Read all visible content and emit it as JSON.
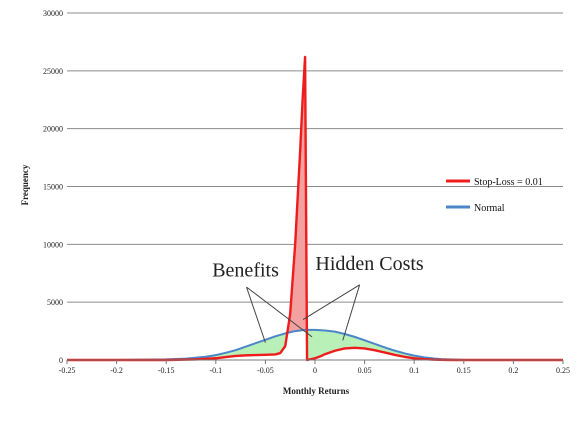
{
  "chart_data": {
    "type": "line",
    "title": "",
    "xlabel": "Monthly Returns",
    "ylabel": "Frequency",
    "xlim": [
      -0.25,
      0.25
    ],
    "ylim": [
      0,
      30000
    ],
    "x_ticks": [
      "-0.25",
      "-0.2",
      "-0.15",
      "-0.1",
      "-0.05",
      "0",
      "0.05",
      "0.1",
      "0.15",
      "0.2",
      "0.25"
    ],
    "y_ticks": [
      "0",
      "5000",
      "10000",
      "15000",
      "20000",
      "25000",
      "30000"
    ],
    "grid": "horizontal",
    "legend_position": "right",
    "series": [
      {
        "name": "Stop-Loss = 0.01",
        "color": "#ee1c1c",
        "fill": "#f2a0a0",
        "points": [
          [
            -0.25,
            0
          ],
          [
            -0.15,
            0
          ],
          [
            -0.12,
            50
          ],
          [
            -0.1,
            150
          ],
          [
            -0.09,
            250
          ],
          [
            -0.08,
            350
          ],
          [
            -0.07,
            400
          ],
          [
            -0.06,
            430
          ],
          [
            -0.05,
            450
          ],
          [
            -0.04,
            480
          ],
          [
            -0.035,
            600
          ],
          [
            -0.03,
            1200
          ],
          [
            -0.025,
            4000
          ],
          [
            -0.02,
            10000
          ],
          [
            -0.015,
            18000
          ],
          [
            -0.0125,
            22500
          ],
          [
            -0.01,
            26200
          ],
          [
            -0.008,
            0
          ],
          [
            0,
            150
          ],
          [
            0.005,
            300
          ],
          [
            0.01,
            500
          ],
          [
            0.02,
            800
          ],
          [
            0.03,
            1000
          ],
          [
            0.04,
            1050
          ],
          [
            0.05,
            1000
          ],
          [
            0.06,
            850
          ],
          [
            0.07,
            650
          ],
          [
            0.08,
            450
          ],
          [
            0.09,
            280
          ],
          [
            0.1,
            150
          ],
          [
            0.11,
            70
          ],
          [
            0.12,
            30
          ],
          [
            0.13,
            10
          ],
          [
            0.14,
            0
          ],
          [
            0.25,
            0
          ]
        ]
      },
      {
        "name": "Normal",
        "color": "#4a86c8",
        "fill": "#b8f0b8",
        "points": [
          [
            -0.25,
            0
          ],
          [
            -0.2,
            0
          ],
          [
            -0.15,
            50
          ],
          [
            -0.13,
            120
          ],
          [
            -0.11,
            280
          ],
          [
            -0.1,
            420
          ],
          [
            -0.09,
            620
          ],
          [
            -0.08,
            850
          ],
          [
            -0.07,
            1150
          ],
          [
            -0.06,
            1450
          ],
          [
            -0.05,
            1750
          ],
          [
            -0.04,
            2050
          ],
          [
            -0.03,
            2300
          ],
          [
            -0.02,
            2500
          ],
          [
            -0.01,
            2600
          ],
          [
            0,
            2600
          ],
          [
            0.01,
            2550
          ],
          [
            0.02,
            2450
          ],
          [
            0.03,
            2250
          ],
          [
            0.04,
            2000
          ],
          [
            0.05,
            1700
          ],
          [
            0.06,
            1400
          ],
          [
            0.07,
            1100
          ],
          [
            0.08,
            820
          ],
          [
            0.09,
            580
          ],
          [
            0.1,
            380
          ],
          [
            0.11,
            230
          ],
          [
            0.12,
            130
          ],
          [
            0.13,
            60
          ],
          [
            0.15,
            15
          ],
          [
            0.2,
            0
          ],
          [
            0.25,
            0
          ]
        ]
      }
    ],
    "annotations": [
      {
        "text": "Benefits",
        "x": -0.07,
        "y": 7200
      },
      {
        "text": "Hidden Costs",
        "x": 0.055,
        "y": 7800
      }
    ]
  }
}
